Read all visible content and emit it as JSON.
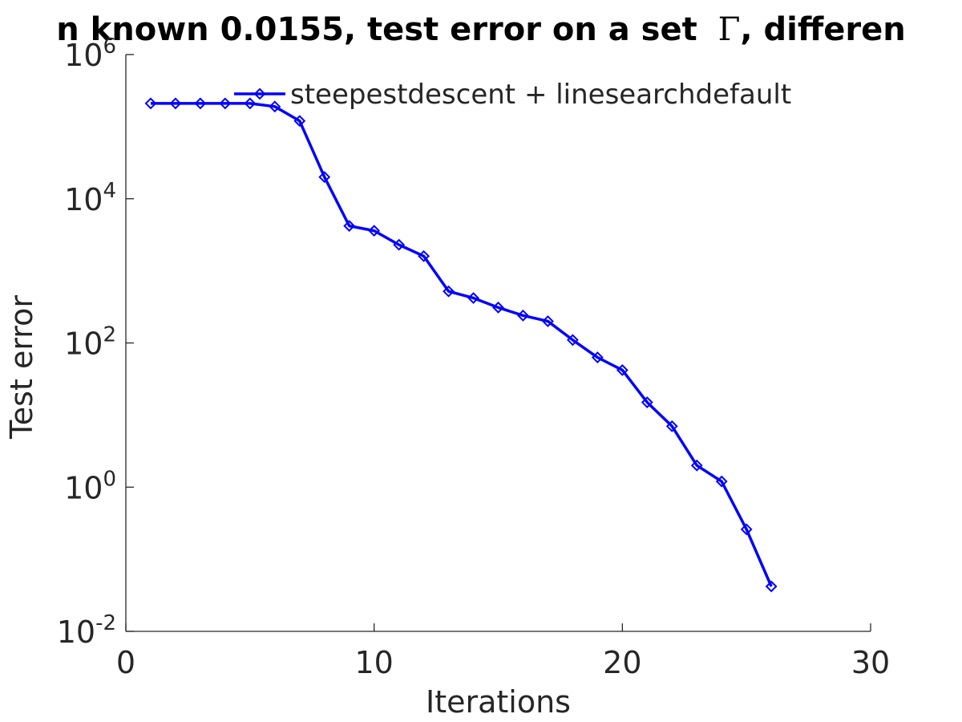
{
  "chart_data": {
    "type": "line",
    "title": {
      "prefix": "n known 0.0155, test error on a set ",
      "symbol": "Γ",
      "suffix": ", differen"
    },
    "xlabel": "Iterations",
    "ylabel": "Test error",
    "xlim": [
      0,
      30
    ],
    "ylim": [
      0.01,
      1000000
    ],
    "yscale": "log",
    "grid": false,
    "legend_position": "top-right",
    "x_ticks": [
      {
        "value": 0,
        "label": "0"
      },
      {
        "value": 10,
        "label": "10"
      },
      {
        "value": 20,
        "label": "20"
      },
      {
        "value": 30,
        "label": "30"
      }
    ],
    "y_ticks": [
      {
        "value": 0.01,
        "base": "10",
        "exp": "-2"
      },
      {
        "value": 1,
        "base": "10",
        "exp": "0"
      },
      {
        "value": 100,
        "base": "10",
        "exp": "2"
      },
      {
        "value": 10000,
        "base": "10",
        "exp": "4"
      },
      {
        "value": 1000000,
        "base": "10",
        "exp": "6"
      }
    ],
    "series": [
      {
        "name": "steepestdescent + linesearchdefault",
        "color": "#0000ff",
        "marker": "diamond",
        "x": [
          1,
          2,
          3,
          4,
          5,
          6,
          7,
          8,
          9,
          10,
          11,
          12,
          13,
          14,
          15,
          16,
          17,
          18,
          19,
          20,
          21,
          22,
          23,
          24,
          25,
          26
        ],
        "y": [
          210000,
          210000,
          210000,
          210000,
          210000,
          190000,
          120000,
          20000,
          4200,
          3600,
          2300,
          1600,
          520,
          420,
          310,
          240,
          200,
          110,
          63,
          42,
          15,
          7,
          2,
          1.2,
          0.26,
          0.042
        ]
      }
    ]
  }
}
